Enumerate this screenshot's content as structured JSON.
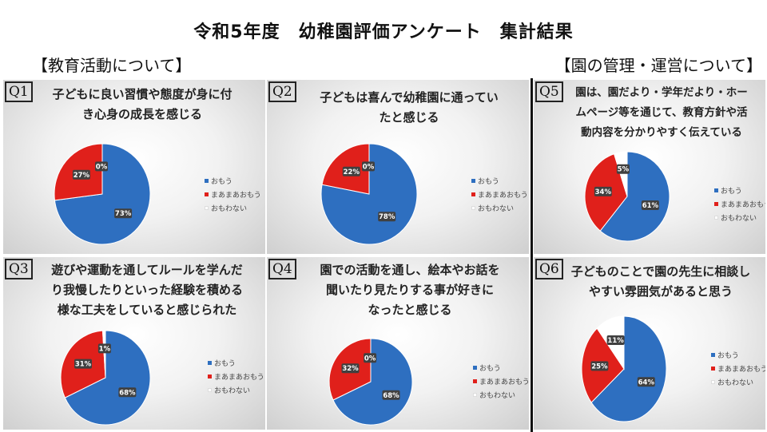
{
  "title": "令和5年度　幼稚園評価アンケート　集計結果",
  "sections": {
    "left": "【教育活動について】",
    "right": "【園の管理・運営について】"
  },
  "colors": {
    "omou": "#2E6FC0",
    "maamaa": "#E0201B",
    "omowanai": "#FFFFFF"
  },
  "legend_labels": [
    "おもう",
    "まあまあおもう",
    "おもわない"
  ],
  "panels": [
    {
      "q": "Q1",
      "text": "子どもに良い習慣や態度が身に付\nき心身の成長を感じる"
    },
    {
      "q": "Q2",
      "text": "子どもは喜んで幼稚園に通ってい\nたと感じる"
    },
    {
      "q": "Q5",
      "text": "園は、園だより・学年だより・ホー\nムページ等を通じて、教育方針や活\n動内容を分かりやすく伝えている"
    },
    {
      "q": "Q3",
      "text": "遊びや運動を通してルールを学んだ\nり我慢したりといった経験を積める\n様な工夫をしていると感じられた"
    },
    {
      "q": "Q4",
      "text": "園での活動を通し、絵本やお話を\n聞いたり見たりする事が好きに\nなったと感じる"
    },
    {
      "q": "Q6",
      "text": "子どものことで園の先生に相談し\nやすい雰囲気があると思う"
    }
  ],
  "chart_data": [
    {
      "type": "pie",
      "title": "Q1",
      "categories": [
        "おもう",
        "まあまあおもう",
        "おもわない"
      ],
      "values": [
        73,
        27,
        0
      ],
      "labels": [
        "73%",
        "27%",
        "0%"
      ]
    },
    {
      "type": "pie",
      "title": "Q2",
      "categories": [
        "おもう",
        "まあまあおもう",
        "おもわない"
      ],
      "values": [
        78,
        22,
        0
      ],
      "labels": [
        "78%",
        "22%",
        "0%"
      ]
    },
    {
      "type": "pie",
      "title": "Q5",
      "categories": [
        "おもう",
        "まあまあおもう",
        "おもわない"
      ],
      "values": [
        61,
        34,
        5
      ],
      "labels": [
        "61%",
        "34%",
        "5%"
      ]
    },
    {
      "type": "pie",
      "title": "Q3",
      "categories": [
        "おもう",
        "まあまあおもう",
        "おもわない"
      ],
      "values": [
        68,
        31,
        1
      ],
      "labels": [
        "68%",
        "31%",
        "1%"
      ]
    },
    {
      "type": "pie",
      "title": "Q4",
      "categories": [
        "おもう",
        "まあまあおもう",
        "おもわない"
      ],
      "values": [
        68,
        32,
        0
      ],
      "labels": [
        "68%",
        "32%",
        "0%"
      ]
    },
    {
      "type": "pie",
      "title": "Q6",
      "categories": [
        "おもう",
        "まあまあおもう",
        "おもわない"
      ],
      "values": [
        64,
        25,
        11
      ],
      "labels": [
        "64%",
        "25%",
        "11%"
      ]
    }
  ]
}
